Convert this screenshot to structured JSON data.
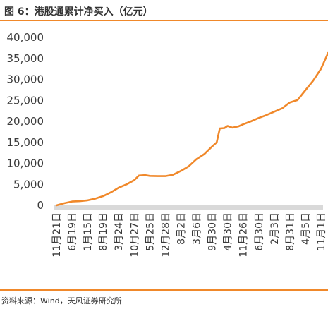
{
  "figure": {
    "title": "图 6：港股通累计净买入（亿元）",
    "source": "资料来源：Wind，天风证券研究所"
  },
  "colors": {
    "line": "#f0882a",
    "accent_rule": "#f0882a",
    "axis_band": "#d9d9d9",
    "text": "#3a3a3a"
  },
  "chart_data": {
    "type": "line",
    "title": "",
    "xlabel": "",
    "ylabel": "",
    "ylim": [
      0,
      40000
    ],
    "yticks": [
      0,
      5000,
      10000,
      15000,
      20000,
      25000,
      30000,
      35000,
      40000
    ],
    "ytick_labels": [
      "0",
      "5,000",
      "10,000",
      "15,000",
      "20,000",
      "25,000",
      "30,000",
      "35,000",
      "40,000"
    ],
    "grid": false,
    "legend": "none",
    "categories": [
      "11月21日",
      "6月19日",
      "1月15日",
      "8月19日",
      "3月24日",
      "10月27日",
      "5月25日",
      "12月28日",
      "8月2日",
      "3月6日",
      "9月30日",
      "4月30日",
      "11月26日",
      "6月30日",
      "2月3日",
      "8月31日",
      "4月5日",
      "11月1日"
    ],
    "series": [
      {
        "values": [
          [
            0,
            0
          ],
          [
            0.5,
            500
          ],
          [
            1,
            900
          ],
          [
            1.5,
            1000
          ],
          [
            2,
            1200
          ],
          [
            2.5,
            1600
          ],
          [
            3,
            2200
          ],
          [
            3.5,
            3100
          ],
          [
            4,
            4200
          ],
          [
            4.5,
            5000
          ],
          [
            5,
            6000
          ],
          [
            5.3,
            7100
          ],
          [
            5.7,
            7200
          ],
          [
            6,
            7000
          ],
          [
            6.5,
            6950
          ],
          [
            7,
            6950
          ],
          [
            7.5,
            7300
          ],
          [
            8,
            8200
          ],
          [
            8.5,
            9300
          ],
          [
            9,
            11000
          ],
          [
            9.5,
            12200
          ],
          [
            10,
            14000
          ],
          [
            10.3,
            15000
          ],
          [
            10.5,
            18300
          ],
          [
            10.8,
            18400
          ],
          [
            11,
            18900
          ],
          [
            11.3,
            18500
          ],
          [
            11.7,
            18800
          ],
          [
            12,
            19300
          ],
          [
            12.5,
            20000
          ],
          [
            13,
            20800
          ],
          [
            13.5,
            21500
          ],
          [
            14,
            22300
          ],
          [
            14.5,
            23100
          ],
          [
            15,
            24500
          ],
          [
            15.5,
            25100
          ],
          [
            16,
            27400
          ],
          [
            16.5,
            29700
          ],
          [
            17,
            32500
          ],
          [
            17.5,
            36600
          ]
        ]
      }
    ]
  }
}
